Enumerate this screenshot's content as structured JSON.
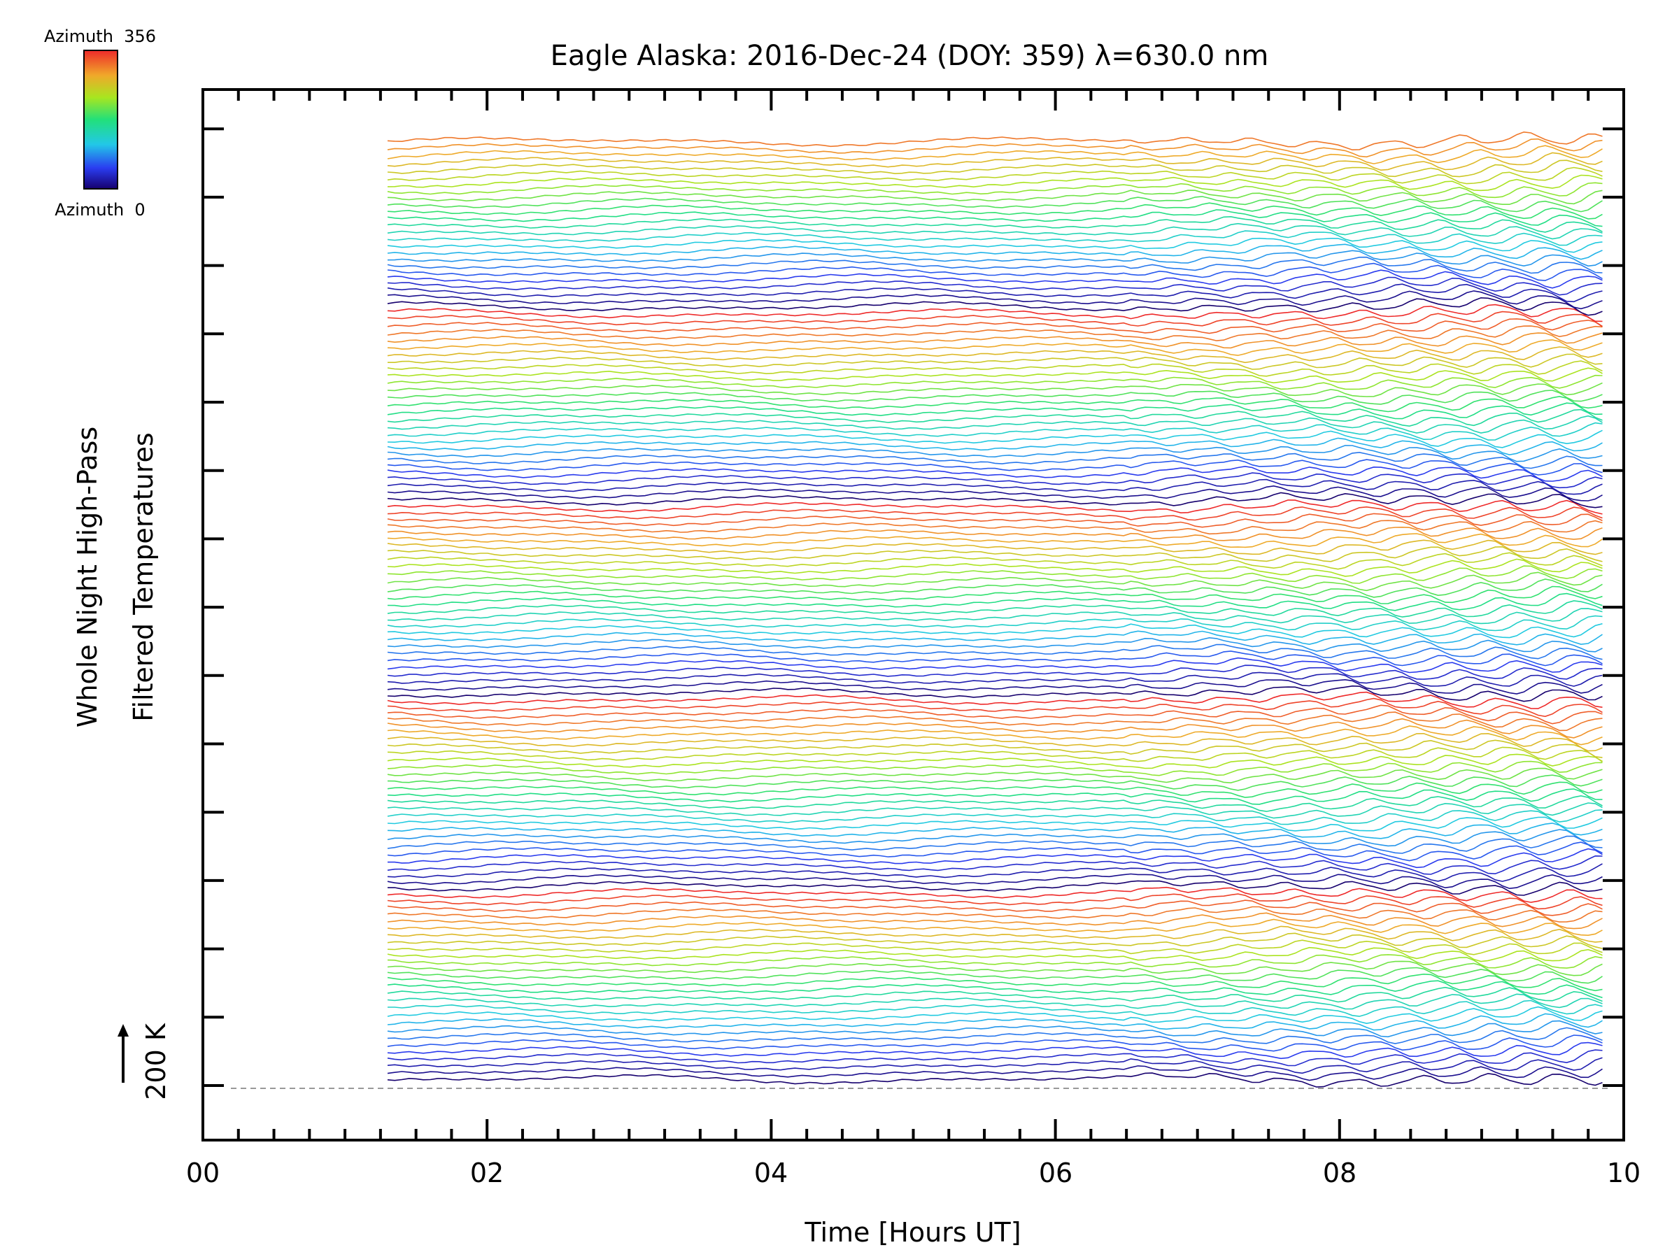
{
  "chart_data": {
    "type": "line",
    "title": "Eagle Alaska: 2016-Dec-24 (DOY: 359) λ=630.0 nm",
    "xlabel": "Time [Hours UT]",
    "ylabel_line1": "Whole Night High-Pass",
    "ylabel_line2": "Filtered Temperatures",
    "x_tick_labels": [
      "00",
      "02",
      "04",
      "06",
      "08",
      "10"
    ],
    "xlim": [
      0,
      10
    ],
    "data_time_range_hours": [
      1.3,
      9.85
    ],
    "scale_bar_label": "200 K",
    "colorbar": {
      "top_label": "Azimuth  356",
      "bottom_label": "Azimuth  0",
      "colormap": "rainbow",
      "azimuth_range": [
        0,
        356
      ]
    },
    "series_count": 137,
    "azimuth_cycle_length": 28,
    "colors": {
      "frame": "#000000",
      "baseline": "#999999",
      "background": "#ffffff"
    }
  }
}
